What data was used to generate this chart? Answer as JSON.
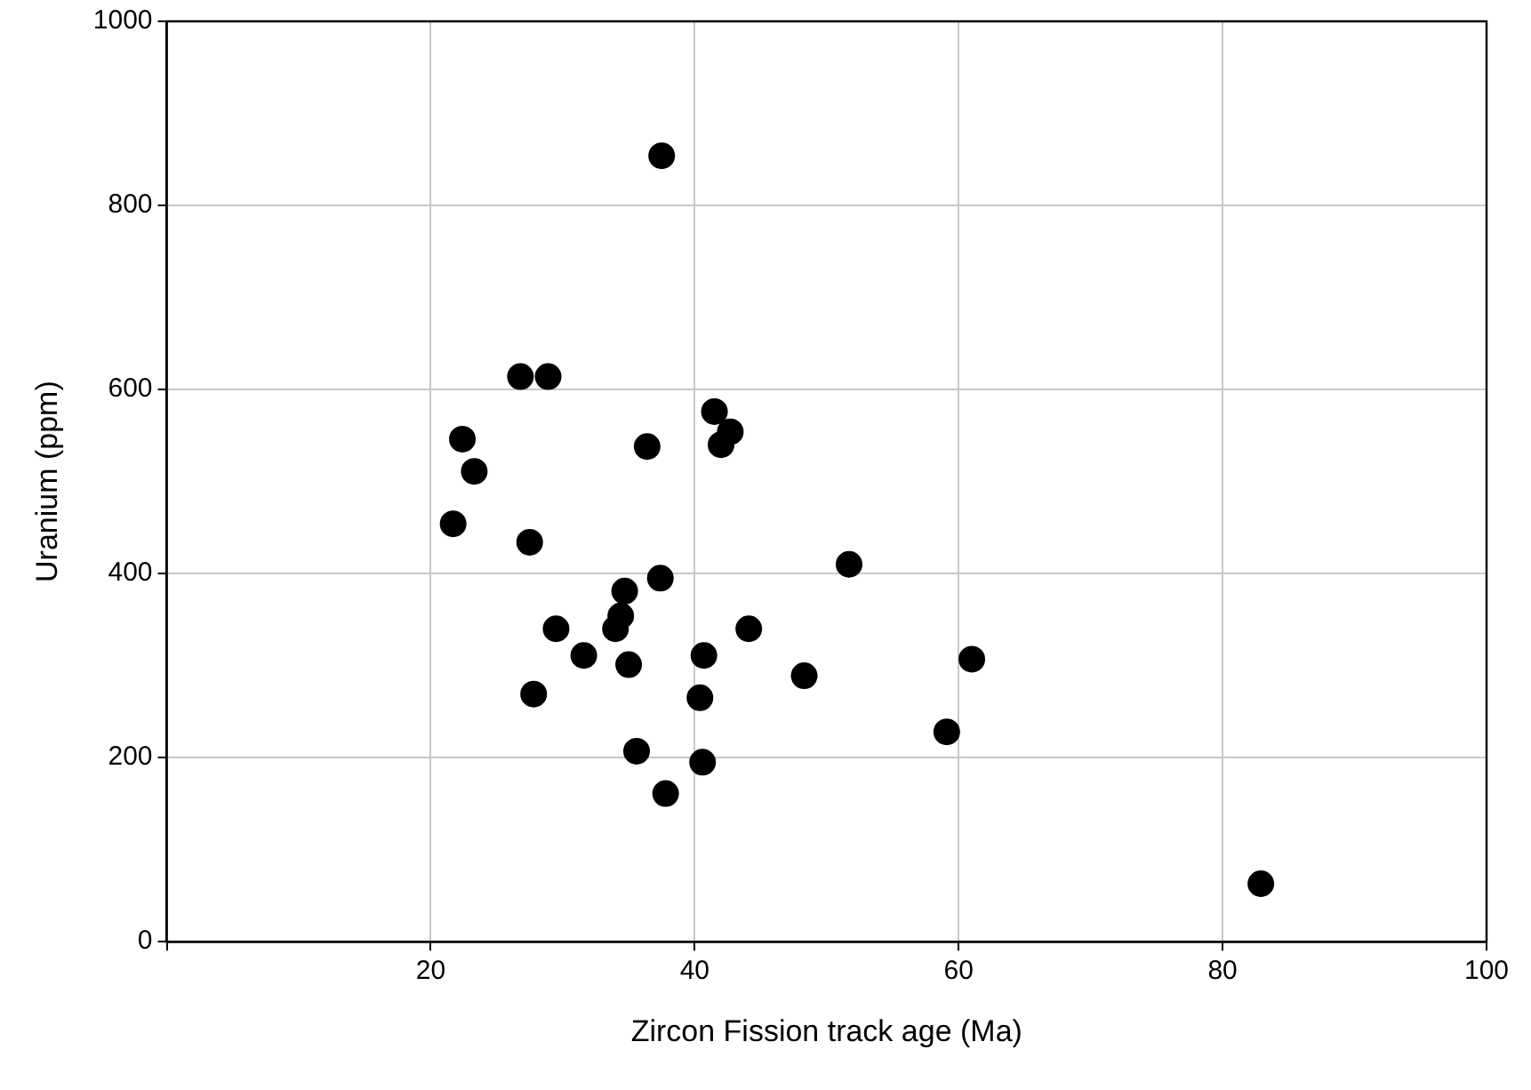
{
  "chart_data": {
    "type": "scatter",
    "xlabel": "Zircon Fission track age (Ma)",
    "ylabel": "Uranium (ppm)",
    "x": [
      37.5,
      26.8,
      28.9,
      41.5,
      42.7,
      42.0,
      36.4,
      22.4,
      23.3,
      21.7,
      27.5,
      51.7,
      37.4,
      34.7,
      34.4,
      34.0,
      29.5,
      44.1,
      31.6,
      40.7,
      35.0,
      61.0,
      48.3,
      27.8,
      40.4,
      59.1,
      35.6,
      40.6,
      37.8,
      82.9
    ],
    "series": [
      {
        "color": "#000000",
        "values": [
          854,
          614,
          614,
          576,
          554,
          540,
          538,
          546,
          511,
          454,
          434,
          410,
          395,
          381,
          354,
          340,
          340,
          340,
          311,
          311,
          301,
          307,
          289,
          269,
          265,
          228,
          207,
          195,
          161,
          63
        ]
      }
    ],
    "xlim": [
      0,
      100
    ],
    "xticks": [
      {
        "value": 0,
        "label": null
      },
      20,
      40,
      60,
      80,
      100
    ],
    "ylim": [
      0,
      1000
    ],
    "yticks": [
      0,
      200,
      400,
      600,
      800,
      1000
    ],
    "grid": true,
    "marker": "circle",
    "legend": false
  }
}
